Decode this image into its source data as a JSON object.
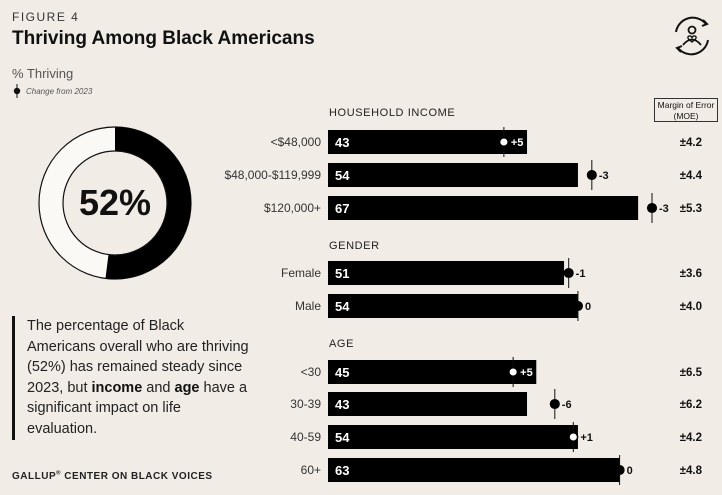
{
  "header": {
    "figure_label": "FIGURE 4",
    "title": "Thriving Among Black Americans",
    "measure_label": "% Thriving",
    "change_legend": "Change from 2023"
  },
  "overall": {
    "value": 52,
    "display": "52%"
  },
  "callout": {
    "part1": "The percentage of Black Americans overall who are thriving (52%) has remained steady since 2023, but ",
    "bold1": "income",
    "part2": " and ",
    "bold2": "age",
    "part3": " have a significant impact on life evaluation."
  },
  "footer": {
    "brand": "GALLUP",
    "reg": "®",
    "text": " CENTER ON BLACK VOICES"
  },
  "moe_header": {
    "line1": "Margin of Error",
    "line2": "(MOE)"
  },
  "colors": {
    "background": "#f1ece6",
    "bar": "#000000",
    "text": "#111111"
  },
  "chart_data": {
    "type": "bar",
    "orientation": "horizontal",
    "xlim": [
      0,
      70
    ],
    "groups": [
      {
        "name": "HOUSEHOLD INCOME",
        "rows": [
          {
            "label": "<$48,000",
            "value": 43,
            "change": "+5",
            "change_value": 5,
            "moe": "±4.2"
          },
          {
            "label": "$48,000-$119,999",
            "value": 54,
            "change": "-3",
            "change_value": -3,
            "moe": "±4.4"
          },
          {
            "label": "$120,000+",
            "value": 67,
            "change": "-3",
            "change_value": -3,
            "moe": "±5.3"
          }
        ]
      },
      {
        "name": "GENDER",
        "rows": [
          {
            "label": "Female",
            "value": 51,
            "change": "-1",
            "change_value": -1,
            "moe": "±3.6"
          },
          {
            "label": "Male",
            "value": 54,
            "change": "0",
            "change_value": 0,
            "moe": "±4.0"
          }
        ]
      },
      {
        "name": "AGE",
        "rows": [
          {
            "label": "<30",
            "value": 45,
            "change": "+5",
            "change_value": 5,
            "moe": "±6.5"
          },
          {
            "label": "30-39",
            "value": 43,
            "change": "-6",
            "change_value": -6,
            "moe": "±6.2"
          },
          {
            "label": "40-59",
            "value": 54,
            "change": "+1",
            "change_value": 1,
            "moe": "±4.2"
          },
          {
            "label": "60+",
            "value": 63,
            "change": "0",
            "change_value": 0,
            "moe": "±4.8"
          }
        ]
      }
    ]
  }
}
